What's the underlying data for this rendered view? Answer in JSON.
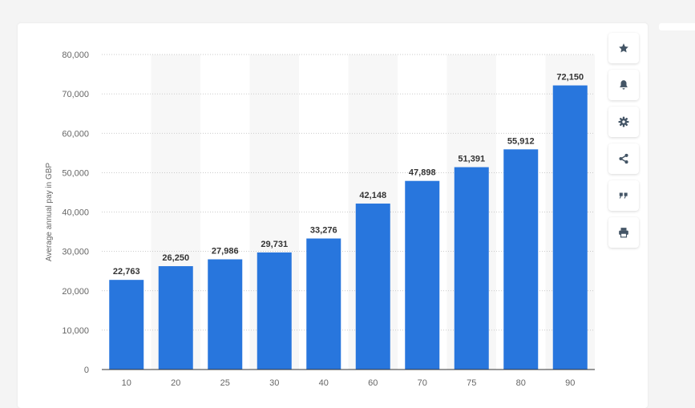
{
  "colors": {
    "bar": "#2876dd",
    "band": "#f7f7f7",
    "grid": "#bbbbbb",
    "axis": "#333333"
  },
  "toolbar": {
    "buttons": [
      {
        "icon": "star-icon"
      },
      {
        "icon": "bell-icon"
      },
      {
        "icon": "gear-icon"
      },
      {
        "icon": "share-icon"
      },
      {
        "icon": "quote-icon"
      },
      {
        "icon": "print-icon"
      }
    ]
  },
  "chart_data": {
    "type": "bar",
    "categories": [
      "10",
      "20",
      "25",
      "30",
      "40",
      "60",
      "70",
      "75",
      "80",
      "90"
    ],
    "values": [
      22763,
      26250,
      27986,
      29731,
      33276,
      42148,
      47898,
      51391,
      55912,
      72150
    ],
    "value_labels": [
      "22,763",
      "26,250",
      "27,986",
      "29,731",
      "33,276",
      "42,148",
      "47,898",
      "51,391",
      "55,912",
      "72,150"
    ],
    "ylabel": "Average annual pay in GBP",
    "ylim": [
      0,
      80000
    ],
    "yticks": [
      0,
      10000,
      20000,
      30000,
      40000,
      50000,
      60000,
      70000,
      80000
    ],
    "ytick_labels": [
      "0",
      "10,000",
      "20,000",
      "30,000",
      "40,000",
      "50,000",
      "60,000",
      "70,000",
      "80,000"
    ],
    "grid": true,
    "alternating_bands": true
  }
}
